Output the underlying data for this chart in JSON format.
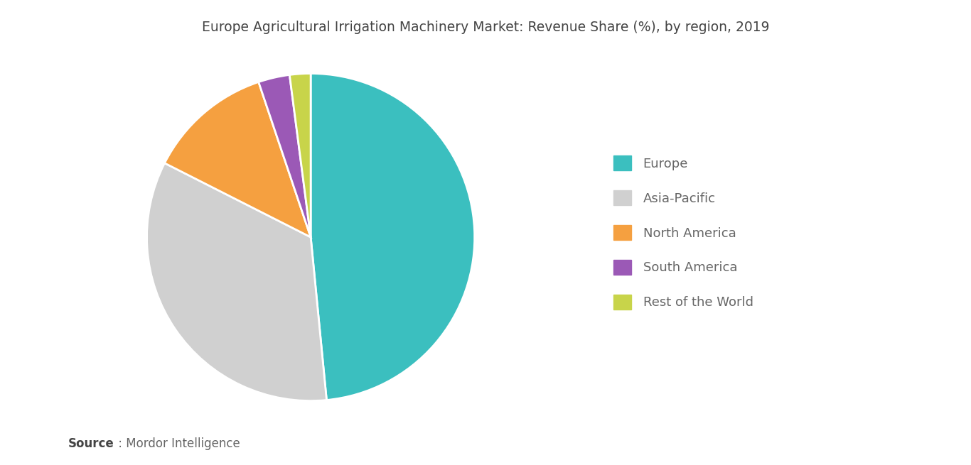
{
  "title": "Europe Agricultural Irrigation Machinery Market: Revenue Share (%), by region, 2019",
  "labels": [
    "Europe",
    "Asia-Pacific",
    "North America",
    "South America",
    "Rest of the World"
  ],
  "values": [
    47,
    33,
    12,
    3,
    2
  ],
  "colors": [
    "#3bbfbf",
    "#d0d0d0",
    "#f5a040",
    "#9b59b6",
    "#c8d44a"
  ],
  "legend_labels": [
    "Europe",
    "Asia-Pacific",
    "North America",
    "South America",
    "Rest of the World"
  ],
  "source_bold": "Source",
  "source_rest": " : Mordor Intelligence",
  "background_color": "#ffffff",
  "title_fontsize": 13.5,
  "legend_fontsize": 13,
  "source_fontsize": 12,
  "startangle": 90
}
